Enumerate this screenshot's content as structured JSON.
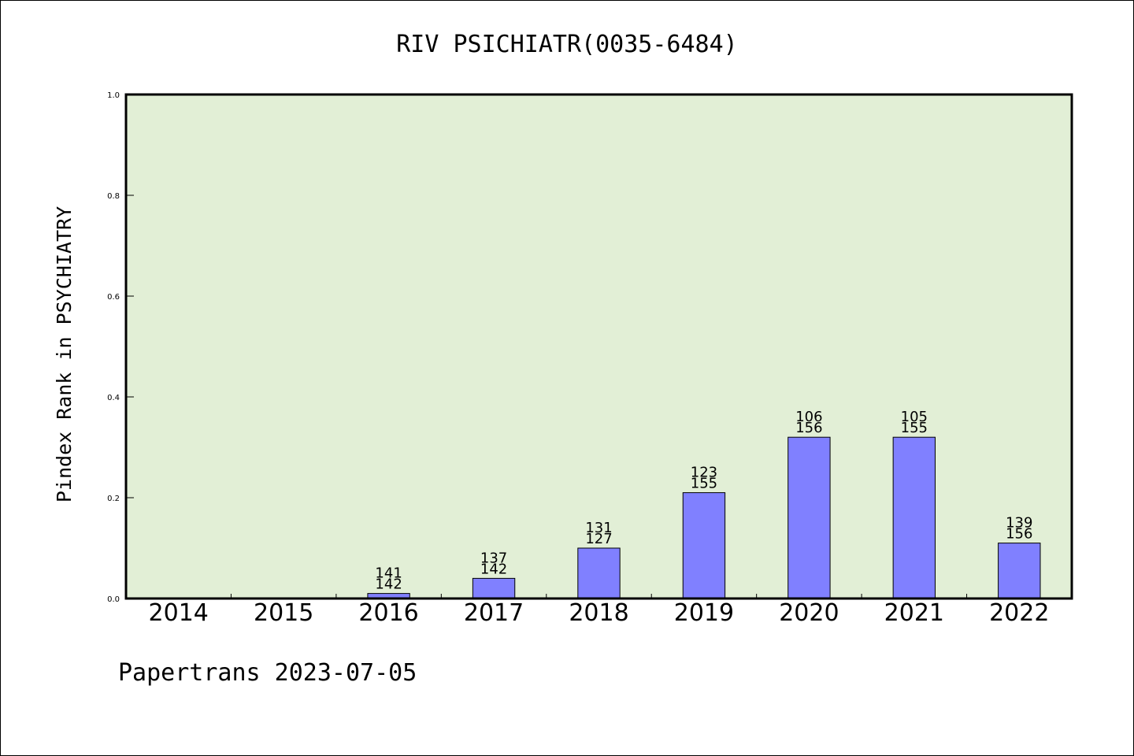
{
  "footer": "Papertrans 2023-07-05",
  "colors": {
    "plot_background": "#e2efd6",
    "bar_fill": "#8080ff",
    "bar_stroke": "#000000"
  },
  "chart_data": {
    "type": "bar",
    "title": "RIV PSICHIATR(0035-6484)",
    "xlabel": "",
    "ylabel": "Pindex Rank in PSYCHIATRY",
    "ylim": [
      0,
      1.0
    ],
    "yticks": [
      "0.0",
      "0.2",
      "0.4",
      "0.6",
      "0.8",
      "1.0"
    ],
    "grid": false,
    "categories": [
      "2014",
      "2015",
      "2016",
      "2017",
      "2018",
      "2019",
      "2020",
      "2021",
      "2022"
    ],
    "values": [
      0,
      0,
      0.01,
      0.04,
      0.1,
      0.21,
      0.32,
      0.32,
      0.11
    ],
    "bar_labels": [
      null,
      null,
      [
        "141",
        "142"
      ],
      [
        "137",
        "142"
      ],
      [
        "131",
        "127"
      ],
      [
        "123",
        "155"
      ],
      [
        "106",
        "156"
      ],
      [
        "105",
        "155"
      ],
      [
        "139",
        "156"
      ]
    ]
  }
}
